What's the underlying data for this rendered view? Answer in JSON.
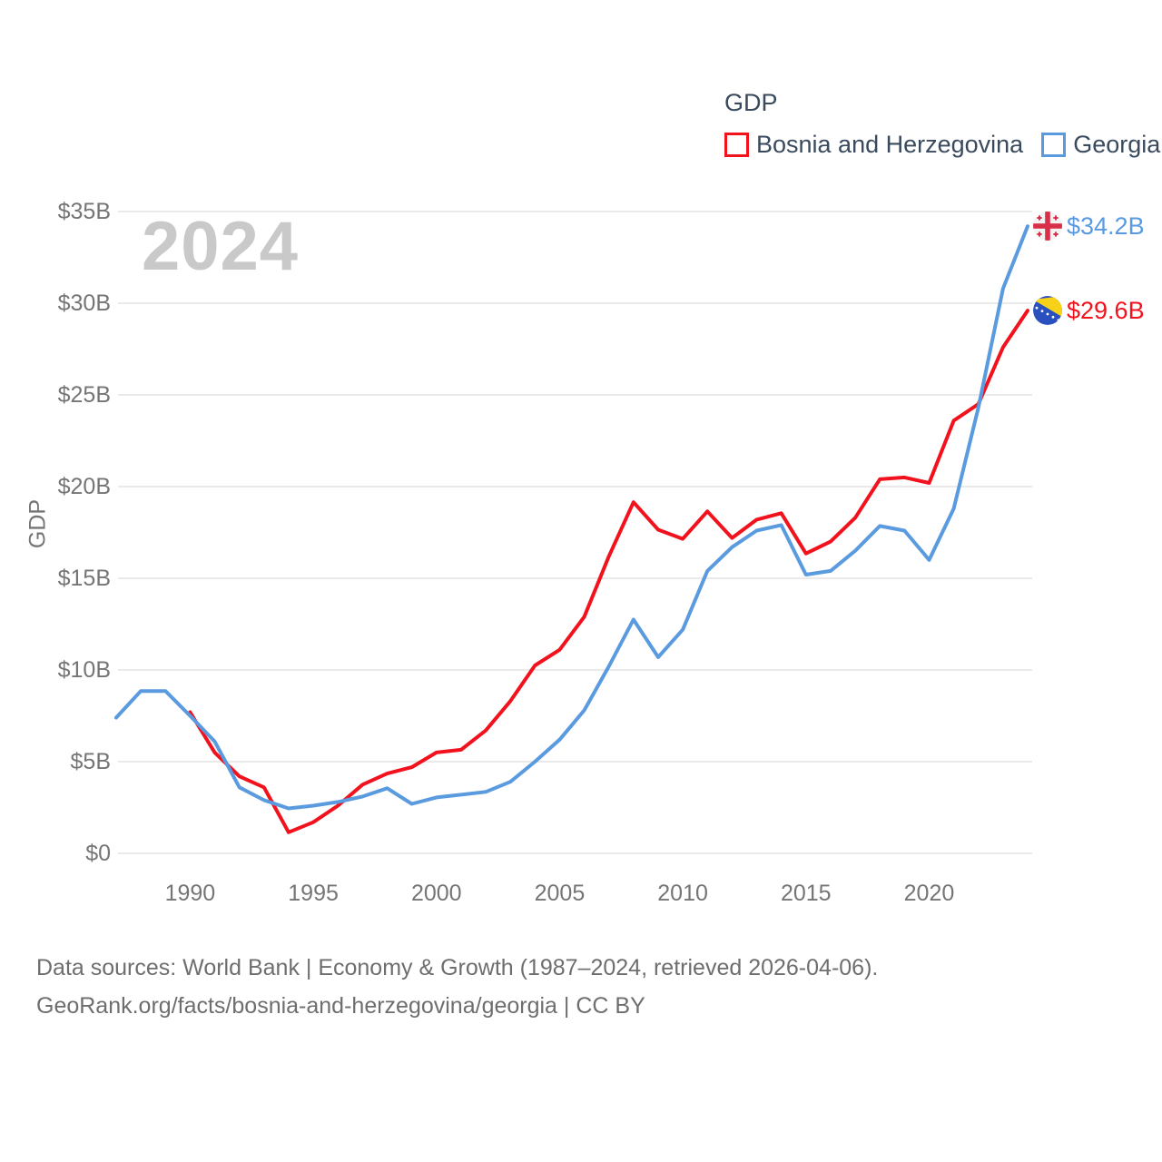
{
  "watermark": "2024",
  "legend": {
    "title": "GDP",
    "items": [
      {
        "label": "Bosnia and Herzegovina",
        "color": "#f2121d"
      },
      {
        "label": "Georgia",
        "color": "#5a9adf"
      }
    ]
  },
  "axes": {
    "ylabel": "GDP"
  },
  "chart_data": {
    "type": "line",
    "title": "GDP",
    "ylabel": "GDP",
    "xlim": [
      1987,
      2024
    ],
    "ylim": [
      0,
      35
    ],
    "grid": "horizontal",
    "legend_position": "top-right",
    "x_ticks": [
      1990,
      1995,
      2000,
      2005,
      2010,
      2015,
      2020
    ],
    "y_ticks": [
      {
        "v": 0,
        "label": "$0"
      },
      {
        "v": 5,
        "label": "$5B"
      },
      {
        "v": 10,
        "label": "$10B"
      },
      {
        "v": 15,
        "label": "$15B"
      },
      {
        "v": 20,
        "label": "$20B"
      },
      {
        "v": 25,
        "label": "$25B"
      },
      {
        "v": 30,
        "label": "$30B"
      },
      {
        "v": 35,
        "label": "$35B"
      }
    ],
    "x": [
      1987,
      1988,
      1989,
      1990,
      1991,
      1992,
      1993,
      1994,
      1995,
      1996,
      1997,
      1998,
      1999,
      2000,
      2001,
      2002,
      2003,
      2004,
      2005,
      2006,
      2007,
      2008,
      2009,
      2010,
      2011,
      2012,
      2013,
      2014,
      2015,
      2016,
      2017,
      2018,
      2019,
      2020,
      2021,
      2022,
      2023,
      2024
    ],
    "series": [
      {
        "name": "Bosnia and Herzegovina",
        "color": "#f2121d",
        "end_label": "$29.6B",
        "end_value_billions": 29.6,
        "values": [
          null,
          null,
          null,
          7.7,
          5.5,
          4.2,
          3.6,
          1.15,
          1.7,
          2.6,
          3.75,
          4.35,
          4.7,
          5.5,
          5.65,
          6.7,
          8.3,
          10.25,
          11.1,
          12.9,
          16.2,
          19.15,
          17.65,
          17.15,
          18.65,
          17.2,
          18.2,
          18.55,
          16.35,
          17.0,
          18.3,
          20.4,
          20.5,
          20.2,
          23.6,
          24.5,
          27.6,
          29.6
        ]
      },
      {
        "name": "Georgia",
        "color": "#5a9adf",
        "end_label": "$34.2B",
        "end_value_billions": 34.2,
        "values": [
          7.4,
          8.85,
          8.85,
          7.5,
          6.1,
          3.6,
          2.9,
          2.45,
          2.6,
          2.8,
          3.1,
          3.55,
          2.7,
          3.05,
          3.2,
          3.35,
          3.9,
          5.0,
          6.2,
          7.8,
          10.2,
          12.75,
          10.7,
          12.2,
          15.4,
          16.7,
          17.6,
          17.9,
          15.2,
          15.4,
          16.5,
          17.85,
          17.6,
          16.0,
          18.8,
          24.3,
          30.8,
          34.2
        ]
      }
    ]
  },
  "footer": {
    "line1": "Data sources: World Bank | Economy & Growth (1987–2024, retrieved 2026-04-06).",
    "line2": "GeoRank.org/facts/bosnia-and-herzegovina/georgia | CC BY"
  }
}
